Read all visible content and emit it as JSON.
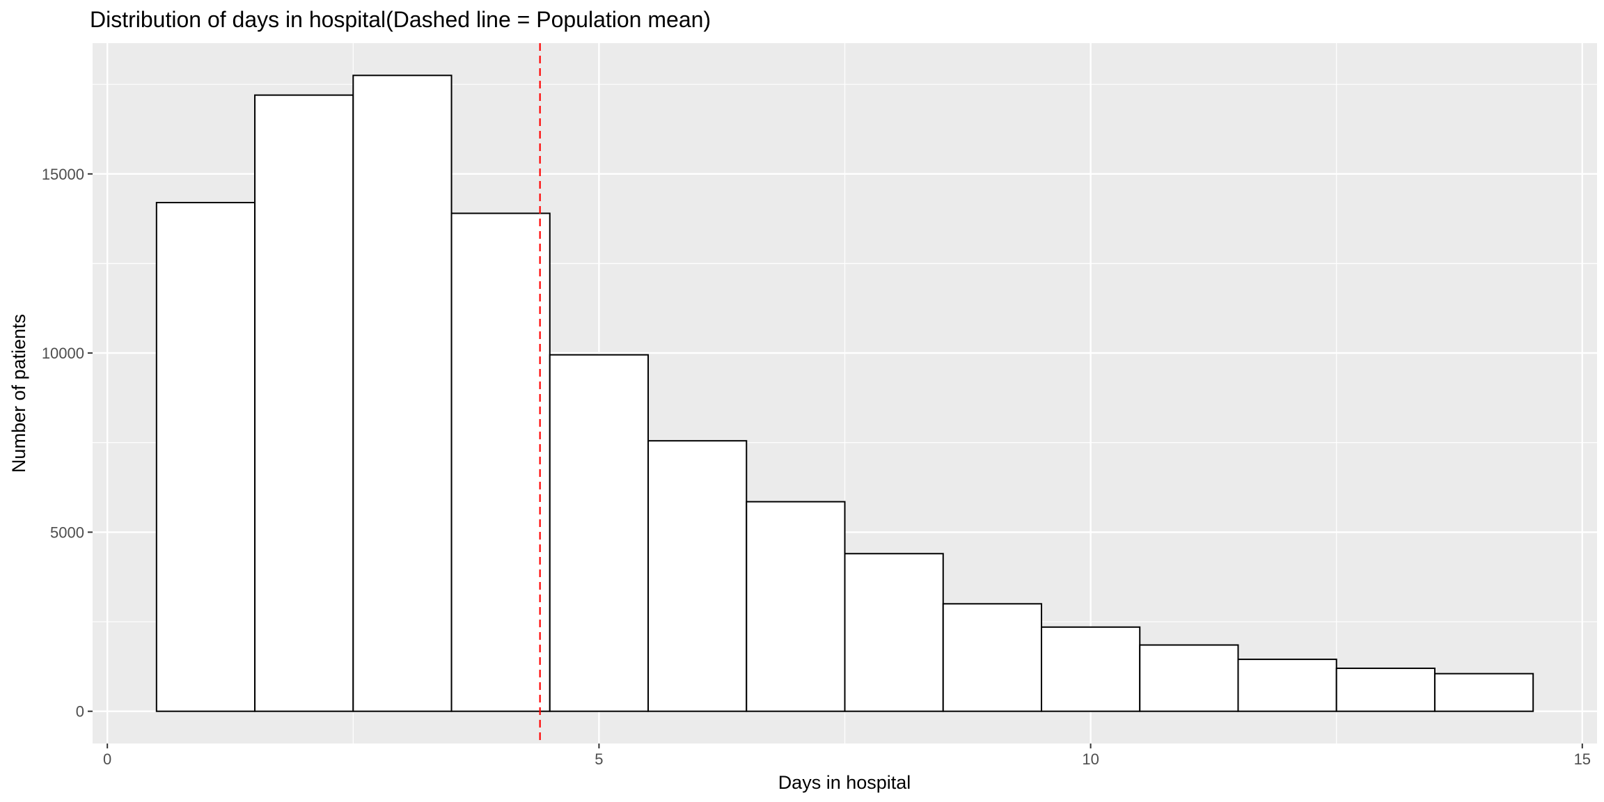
{
  "chart_data": {
    "type": "bar",
    "title": "Distribution of days in hospital(Dashed line = Population mean)",
    "xlabel": "Days in hospital",
    "ylabel": "Number of patients",
    "bin_width": 1,
    "bins": [
      1,
      2,
      3,
      4,
      5,
      6,
      7,
      8,
      9,
      10,
      11,
      12,
      13,
      14
    ],
    "values": [
      14200,
      17200,
      17750,
      13900,
      9950,
      7550,
      5850,
      4400,
      3000,
      2350,
      1850,
      1450,
      1200,
      1050
    ],
    "mean_line": 4.4,
    "xlim": [
      -0.15,
      15.15
    ],
    "ylim": [
      -900,
      18650
    ],
    "x_ticks": [
      0,
      5,
      10,
      15
    ],
    "x_tick_labels": [
      "0",
      "5",
      "10",
      "15"
    ],
    "y_ticks": [
      0,
      5000,
      10000,
      15000
    ],
    "y_tick_labels": [
      "0",
      "5000",
      "10000",
      "15000"
    ],
    "x_minor_ticks": [
      2.5,
      7.5,
      12.5
    ],
    "y_minor_ticks": [
      2500,
      7500,
      12500,
      17500
    ],
    "grid": true,
    "colors": {
      "panel_background": "#ebebeb",
      "grid_line": "#ffffff",
      "bar_fill": "#ffffff",
      "bar_outline": "#000000",
      "mean_line": "#ff0000"
    }
  }
}
